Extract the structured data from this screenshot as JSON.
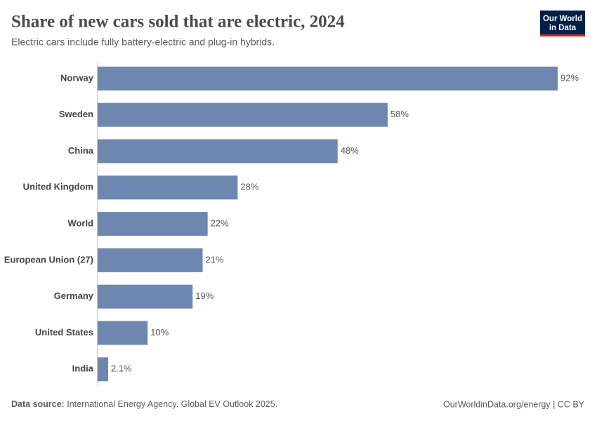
{
  "chart_data": {
    "type": "bar",
    "title": "Share of new cars sold that are electric, 2024",
    "subtitle": "Electric cars include fully battery-electric and plug-in hybrids.",
    "categories": [
      "Norway",
      "Sweden",
      "China",
      "United Kingdom",
      "World",
      "European Union (27)",
      "Germany",
      "United States",
      "India"
    ],
    "values": [
      92,
      58,
      48,
      28,
      22,
      21,
      19,
      10,
      2.1
    ],
    "value_labels": [
      "92%",
      "58%",
      "48%",
      "28%",
      "22%",
      "21%",
      "19%",
      "10%",
      "2.1%"
    ],
    "color": "#6d87b0",
    "source_label": "Data source:",
    "source": "International Energy Agency. Global EV Outlook 2025.",
    "credit": "OurWorldinData.org/energy | CC BY",
    "logo": [
      "Our World",
      "in Data"
    ]
  }
}
